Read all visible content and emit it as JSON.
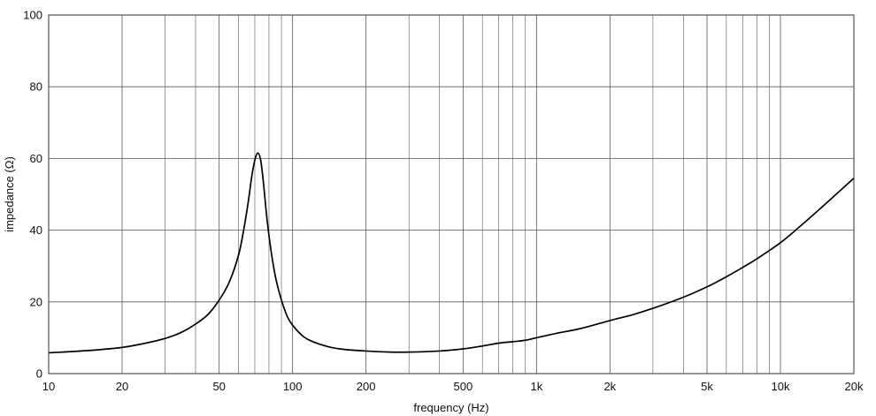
{
  "chart_data": {
    "type": "line",
    "title": "",
    "xlabel": "frequency (Hz)",
    "ylabel": "impedance (Ω)",
    "x_scale": "log",
    "xlim": [
      10,
      20000
    ],
    "ylim": [
      0,
      100
    ],
    "grid": true,
    "legend": "none",
    "line_color": "#000000",
    "grid_color": "#555555",
    "x_ticks": [
      {
        "value": 10,
        "label": "10"
      },
      {
        "value": 20,
        "label": "20"
      },
      {
        "value": 50,
        "label": "50"
      },
      {
        "value": 100,
        "label": "100"
      },
      {
        "value": 200,
        "label": "200"
      },
      {
        "value": 500,
        "label": "500"
      },
      {
        "value": 1000,
        "label": "1k"
      },
      {
        "value": 2000,
        "label": "2k"
      },
      {
        "value": 5000,
        "label": "5k"
      },
      {
        "value": 10000,
        "label": "10k"
      },
      {
        "value": 20000,
        "label": "20k"
      }
    ],
    "x_minor_grid": [
      30,
      40,
      60,
      70,
      80,
      90,
      300,
      400,
      600,
      700,
      800,
      900,
      3000,
      4000,
      6000,
      7000,
      8000,
      9000
    ],
    "y_ticks": [
      {
        "value": 0,
        "label": "0"
      },
      {
        "value": 20,
        "label": "20"
      },
      {
        "value": 40,
        "label": "40"
      },
      {
        "value": 60,
        "label": "60"
      },
      {
        "value": 80,
        "label": "80"
      },
      {
        "value": 100,
        "label": "100"
      }
    ],
    "series": [
      {
        "x": [
          10,
          15,
          20,
          25,
          30,
          35,
          40,
          45,
          50,
          55,
          60,
          63,
          66,
          68,
          70,
          72,
          74,
          76,
          78,
          80,
          83,
          86,
          90,
          95,
          100,
          110,
          120,
          140,
          160,
          200,
          250,
          300,
          400,
          500,
          600,
          700,
          800,
          900,
          1000,
          1200,
          1500,
          2000,
          2500,
          3000,
          4000,
          5000,
          6000,
          7000,
          8000,
          10000,
          12000,
          15000,
          20000
        ],
        "y": [
          5.8,
          6.5,
          7.3,
          8.5,
          9.8,
          11.5,
          13.8,
          16.5,
          20.5,
          25.5,
          33,
          40,
          48.5,
          55,
          59.5,
          61.5,
          59.5,
          53,
          45,
          38.5,
          31,
          25.5,
          20.5,
          16,
          13.5,
          10.5,
          9,
          7.5,
          6.8,
          6.3,
          6.0,
          6.0,
          6.3,
          6.9,
          7.7,
          8.5,
          8.9,
          9.3,
          10.0,
          11.2,
          12.5,
          14.8,
          16.5,
          18.2,
          21.3,
          24.2,
          27.0,
          29.6,
          32.0,
          36.5,
          41.0,
          46.8,
          54.5
        ]
      }
    ]
  }
}
